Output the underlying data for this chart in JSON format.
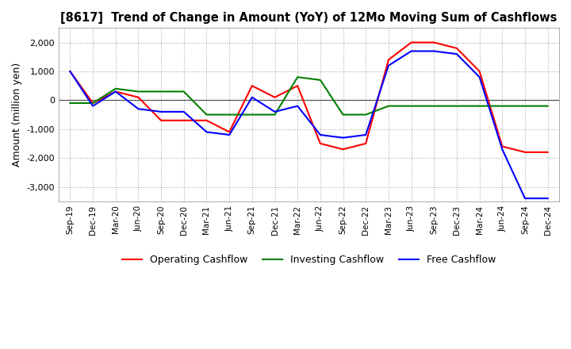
{
  "title": "[8617]  Trend of Change in Amount (YoY) of 12Mo Moving Sum of Cashflows",
  "ylabel": "Amount (million yen)",
  "x_labels": [
    "Sep-19",
    "Dec-19",
    "Mar-20",
    "Jun-20",
    "Sep-20",
    "Dec-20",
    "Mar-21",
    "Jun-21",
    "Sep-21",
    "Dec-21",
    "Mar-22",
    "Jun-22",
    "Sep-22",
    "Dec-22",
    "Mar-23",
    "Jun-23",
    "Sep-23",
    "Dec-23",
    "Mar-24",
    "Jun-24",
    "Sep-24",
    "Dec-24"
  ],
  "operating": [
    1000,
    -100,
    300,
    100,
    -700,
    -700,
    -700,
    -1100,
    500,
    100,
    500,
    -1500,
    -1700,
    -1500,
    1400,
    2000,
    2000,
    1800,
    1000,
    -1600,
    -1800,
    -1800
  ],
  "investing": [
    -100,
    -100,
    400,
    300,
    300,
    300,
    -500,
    -500,
    -500,
    -500,
    800,
    700,
    -500,
    -500,
    -200,
    -200,
    -200,
    -200,
    -200,
    -200,
    -200,
    -200
  ],
  "free": [
    1000,
    -200,
    300,
    -300,
    -400,
    -400,
    -1100,
    -1200,
    100,
    -400,
    -200,
    -1200,
    -1300,
    -1200,
    1200,
    1700,
    1700,
    1600,
    800,
    -1700,
    -3400,
    -3400
  ],
  "ylim": [
    -3500,
    2500
  ],
  "yticks": [
    -3000,
    -2000,
    -1000,
    0,
    1000,
    2000
  ],
  "colors": {
    "operating": "#ff0000",
    "investing": "#008000",
    "free": "#0000ff"
  },
  "legend_labels": [
    "Operating Cashflow",
    "Investing Cashflow",
    "Free Cashflow"
  ],
  "bg_color": "#ffffff",
  "grid_color": "#aaaaaa",
  "zero_line_color": "#555555"
}
